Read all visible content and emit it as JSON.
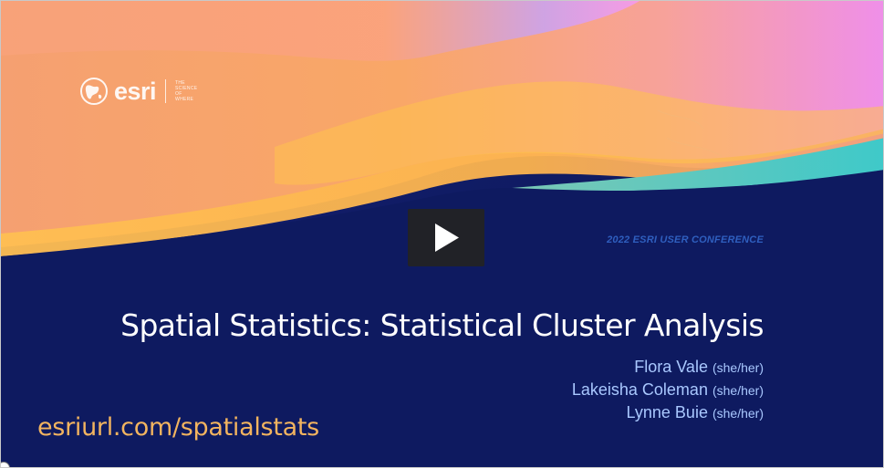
{
  "slide": {
    "logo": {
      "wordmark": "esri",
      "tagline": [
        "THE",
        "SCIENCE",
        "OF",
        "WHERE"
      ]
    },
    "conference": "2022 ESRI USER CONFERENCE",
    "title": "Spatial Statistics: Statistical Cluster Analysis",
    "presenters": [
      {
        "name": "Flora Vale",
        "pronouns": "(she/her)"
      },
      {
        "name": "Lakeisha Coleman",
        "pronouns": "(she/her)"
      },
      {
        "name": "Lynne Buie",
        "pronouns": "(she/her)"
      }
    ],
    "url": "esriurl.com/spatialstats"
  },
  "player": {
    "play_icon": "play-icon"
  },
  "colors": {
    "navy": "#0f1a5e",
    "orange": "#f7a05a",
    "yellow": "#ffc24d",
    "pink": "#f58fd0",
    "teal": "#4cc9c0",
    "url": "#f2b45f",
    "presenter_text": "#a9c8ff",
    "conference_text": "#2f5fbf"
  }
}
